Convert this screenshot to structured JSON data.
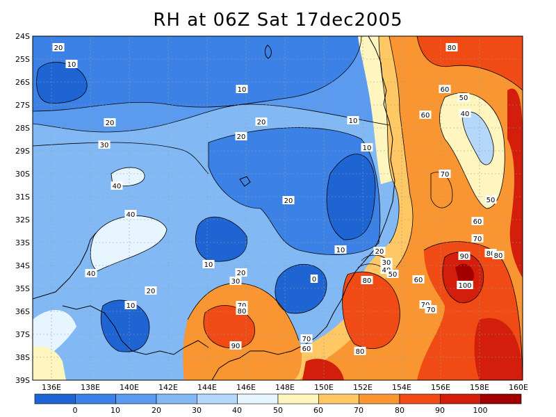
{
  "title": "RH at 06Z Sat 17dec2005",
  "y_axis": {
    "labels": [
      "24S",
      "25S",
      "26S",
      "27S",
      "28S",
      "29S",
      "30S",
      "31S",
      "32S",
      "33S",
      "34S",
      "35S",
      "36S",
      "37S",
      "38S",
      "39S"
    ]
  },
  "x_axis": {
    "labels": [
      "136E",
      "138E",
      "140E",
      "142E",
      "144E",
      "146E",
      "148E",
      "150E",
      "152E",
      "154E",
      "156E",
      "158E",
      "160E"
    ]
  },
  "colorbar": {
    "colors": [
      "#1e64d2",
      "#3c82e6",
      "#5a9bef",
      "#82b9f5",
      "#b4d7fa",
      "#e6f5ff",
      "#fff5be",
      "#ffc864",
      "#fa9632",
      "#f04b14",
      "#d21e0a",
      "#a00000"
    ],
    "labels": [
      "0",
      "10",
      "20",
      "30",
      "40",
      "50",
      "60",
      "70",
      "80",
      "90",
      "100"
    ]
  },
  "contour_labels": [
    "20",
    "10",
    "10",
    "20",
    "20",
    "30",
    "40",
    "40",
    "40",
    "10",
    "20",
    "20",
    "10",
    "20",
    "10",
    "10",
    "0",
    "20",
    "30",
    "70",
    "80",
    "90",
    "70",
    "60",
    "80",
    "80",
    "20",
    "30",
    "40",
    "50",
    "60",
    "70",
    "70",
    "60",
    "50",
    "40",
    "70",
    "50",
    "60",
    "70",
    "80",
    "90",
    "80",
    "100",
    "80",
    "60",
    "10"
  ]
}
